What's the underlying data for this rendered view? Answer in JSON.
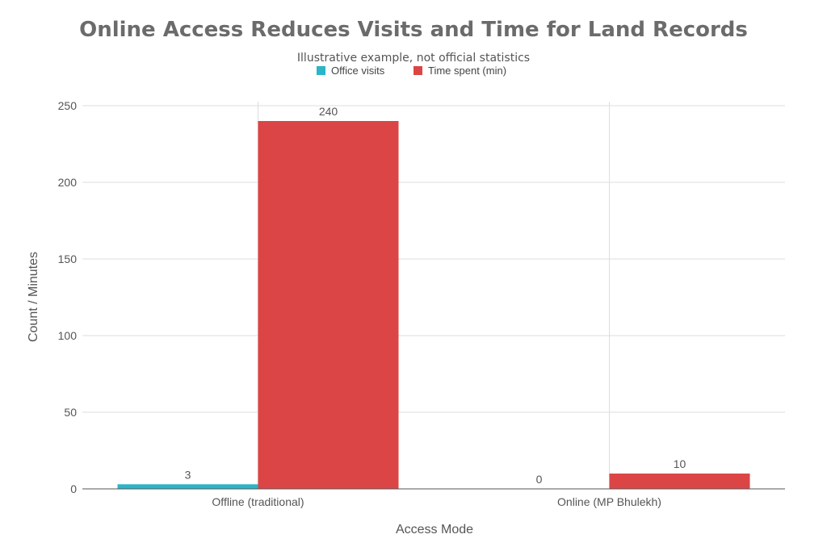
{
  "chart_data": {
    "type": "bar",
    "title": "Online Access Reduces Visits and Time for Land Records",
    "subtitle": "Illustrative example, not official statistics",
    "xlabel": "Access Mode",
    "ylabel": "Count / Minutes",
    "categories": [
      "Offline (traditional)",
      "Online (MP Bhulekh)"
    ],
    "series": [
      {
        "name": "Office visits",
        "values": [
          3,
          0
        ],
        "color": "#2bb5c8"
      },
      {
        "name": "Time spent (min)",
        "values": [
          240,
          10
        ],
        "color": "#dc4545"
      }
    ],
    "ylim": [
      0,
      250
    ],
    "yticks": [
      0,
      50,
      100,
      150,
      200,
      250
    ],
    "grid": true,
    "legend_position": "top-center"
  }
}
